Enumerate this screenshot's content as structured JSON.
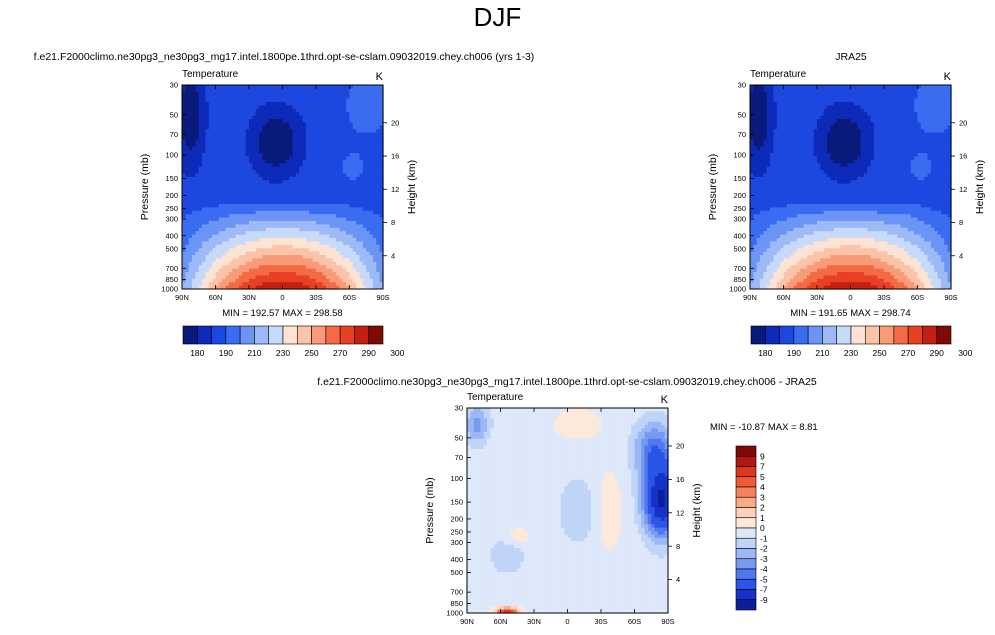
{
  "suptitle": "DJF",
  "panels": [
    {
      "id": "model",
      "title": "f.e21.F2000climo.ne30pg3_ne30pg3_mg17.intel.1800pe.1thrd.opt-se-cslam.09032019.chey.ch006 (yrs 1-3)",
      "left_string": "Temperature",
      "right_string": "K",
      "ylabel": "Pressure (mb)",
      "y2label": "Height (km)",
      "stats": "MIN = 192.57  MAX = 298.58"
    },
    {
      "id": "obs",
      "title": "JRA25",
      "left_string": "Temperature",
      "right_string": "K",
      "ylabel": "Pressure (mb)",
      "y2label": "Height (km)",
      "stats": "MIN = 191.65  MAX = 298.74"
    },
    {
      "id": "diff",
      "title": "f.e21.F2000climo.ne30pg3_ne30pg3_mg17.intel.1800pe.1thrd.opt-se-cslam.09032019.chey.ch006 - JRA25",
      "left_string": "Temperature",
      "right_string": "K",
      "ylabel": "Pressure (mb)",
      "y2label": "Height (km)",
      "stats": "MIN = -10.87  MAX =   8.81"
    }
  ],
  "chart_data": [
    {
      "type": "heatmap",
      "panel": "model",
      "x_ticks": [
        "90N",
        "60N",
        "30N",
        "0",
        "30S",
        "60S",
        "90S"
      ],
      "x_values": [
        90,
        60,
        30,
        0,
        -30,
        -60,
        -90
      ],
      "y_ticks": [
        "30",
        "50",
        "70",
        "100",
        "150",
        "200",
        "250",
        "300",
        "400",
        "500",
        "700",
        "850",
        "1000"
      ],
      "y_values": [
        30,
        50,
        70,
        100,
        150,
        200,
        250,
        300,
        400,
        500,
        700,
        850,
        1000
      ],
      "y_scale": "log",
      "y2_ticks": [
        "20",
        "16",
        "12",
        "8",
        "4"
      ],
      "y2_values": [
        20,
        16,
        12,
        8,
        4
      ],
      "color_levels": [
        180,
        190,
        210,
        230,
        250,
        270,
        290,
        300
      ],
      "min": 192.57,
      "max": 298.58
    },
    {
      "type": "heatmap",
      "panel": "obs",
      "x_ticks": [
        "90N",
        "60N",
        "30N",
        "0",
        "30S",
        "60S",
        "90S"
      ],
      "x_values": [
        90,
        60,
        30,
        0,
        -30,
        -60,
        -90
      ],
      "y_ticks": [
        "30",
        "50",
        "70",
        "100",
        "150",
        "200",
        "250",
        "300",
        "400",
        "500",
        "700",
        "850",
        "1000"
      ],
      "y_values": [
        30,
        50,
        70,
        100,
        150,
        200,
        250,
        300,
        400,
        500,
        700,
        850,
        1000
      ],
      "y_scale": "log",
      "y2_ticks": [
        "20",
        "16",
        "12",
        "8",
        "4"
      ],
      "y2_values": [
        20,
        16,
        12,
        8,
        4
      ],
      "color_levels": [
        180,
        190,
        210,
        230,
        250,
        270,
        290,
        300
      ],
      "min": 191.65,
      "max": 298.74
    },
    {
      "type": "heatmap",
      "panel": "diff",
      "x_ticks": [
        "90N",
        "60N",
        "30N",
        "0",
        "30S",
        "60S",
        "90S"
      ],
      "x_values": [
        90,
        60,
        30,
        0,
        -30,
        -60,
        -90
      ],
      "y_ticks": [
        "30",
        "50",
        "70",
        "100",
        "150",
        "200",
        "250",
        "300",
        "400",
        "500",
        "700",
        "850",
        "1000"
      ],
      "y_values": [
        30,
        50,
        70,
        100,
        150,
        200,
        250,
        300,
        400,
        500,
        700,
        850,
        1000
      ],
      "y_scale": "log",
      "y2_ticks": [
        "20",
        "16",
        "12",
        "8",
        "4"
      ],
      "y2_values": [
        20,
        16,
        12,
        8,
        4
      ],
      "color_levels": [
        "9",
        "7",
        "5",
        "4",
        "3",
        "2",
        "1",
        "0",
        "-1",
        "-2",
        "-3",
        "-4",
        "-5",
        "-7",
        "-9"
      ],
      "min": -10.87,
      "max": 8.81
    }
  ],
  "colors": {
    "abs_scale": [
      "#0a1a7a",
      "#0d2ab8",
      "#1c48e0",
      "#3a6cf2",
      "#6b95f5",
      "#9dbaf7",
      "#c8dafa",
      "#fde3d4",
      "#fbc3a8",
      "#f89b76",
      "#f36a45",
      "#e84022",
      "#c42010",
      "#800a06"
    ],
    "diff_scale": [
      "#800a06",
      "#b01810",
      "#dc3820",
      "#f05a35",
      "#f5805a",
      "#f9ab88",
      "#fcd2bd",
      "#fde8dc",
      "#dde8fb",
      "#c0d4f8",
      "#9bb7f5",
      "#7799f1",
      "#5077ec",
      "#2b55e6",
      "#1533c8",
      "#0b1f9a"
    ]
  }
}
